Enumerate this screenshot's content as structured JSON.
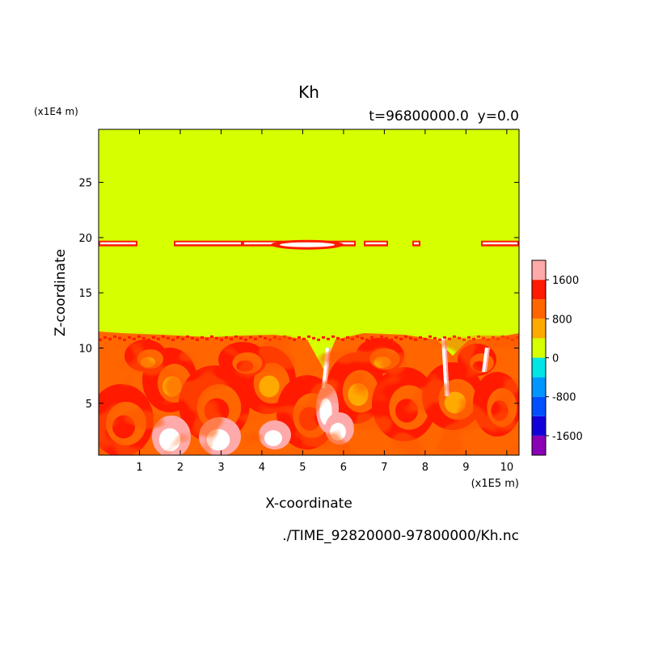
{
  "chart_data": {
    "type": "heatmap",
    "title": "Kh",
    "subtitle": "t=96800000.0  y=0.0",
    "xlabel": "X-coordinate",
    "ylabel": "Z-coordinate",
    "x_unit": "(x1E5 m)",
    "y_unit": "(x1E4 m)",
    "footer": "./TIME_92820000-97800000/Kh.nc",
    "xlim": [
      0,
      10.3
    ],
    "ylim": [
      0.3,
      29.8
    ],
    "x_ticks": [
      "1",
      "2",
      "3",
      "4",
      "5",
      "6",
      "7",
      "8",
      "9",
      "10"
    ],
    "y_ticks": [
      "5",
      "10",
      "15",
      "20",
      "25"
    ],
    "colorbar": {
      "levels": [
        {
          "min": -2000,
          "max": -1600,
          "color": "#8a00b4"
        },
        {
          "min": -1600,
          "max": -1200,
          "color": "#1200d8"
        },
        {
          "min": -1200,
          "max": -800,
          "color": "#0050ff"
        },
        {
          "min": -800,
          "max": -400,
          "color": "#0096ff"
        },
        {
          "min": -400,
          "max": 0,
          "color": "#00e6e6"
        },
        {
          "min": 0,
          "max": 400,
          "color": "#d6ff00"
        },
        {
          "min": 400,
          "max": 800,
          "color": "#ffaa00"
        },
        {
          "min": 800,
          "max": 1200,
          "color": "#ff6600"
        },
        {
          "min": 1200,
          "max": 1600,
          "color": "#ff1a00"
        },
        {
          "min": 1600,
          "max": 2000,
          "color": "#ffaaaa"
        }
      ],
      "tick_labels": [
        "1600",
        "800",
        "0",
        "-800",
        "-1600"
      ],
      "tick_values": [
        1600,
        800,
        0,
        -800,
        -1600
      ]
    },
    "regions": {
      "upper_value_range": "0 to 400",
      "boundary_layer_top_z": 11,
      "thin_layer_z": 19.5,
      "boundary_layer_value_range": "400 to 2000+"
    }
  }
}
